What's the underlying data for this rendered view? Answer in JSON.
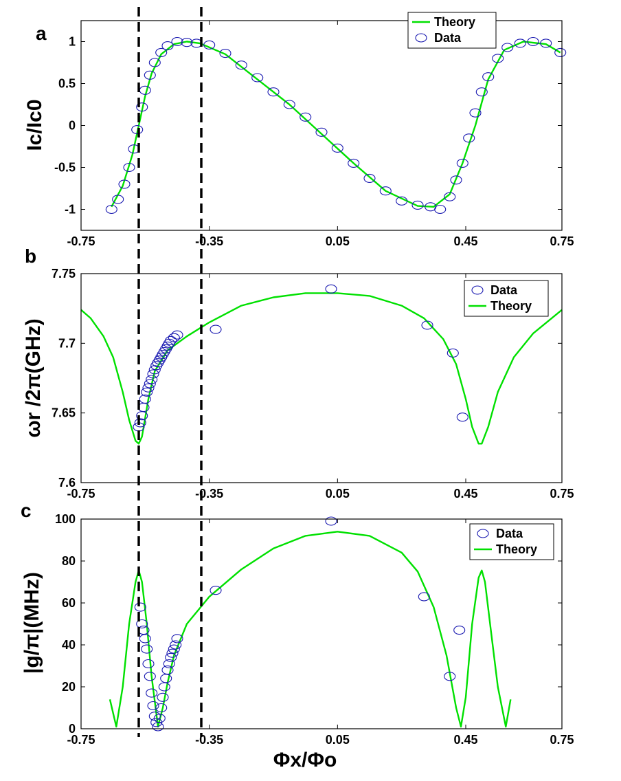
{
  "colors": {
    "theory": "#00e000",
    "data": "#1818b0",
    "axis": "#000000",
    "marker_line": "#000000"
  },
  "figure": {
    "xlabel": "Φx/Φo"
  },
  "markers": {
    "x_values": [
      -0.57,
      -0.375
    ]
  },
  "chart_data": [
    {
      "type": "line",
      "panel": "a",
      "panel_label": "a",
      "ylabel": "Ic/Ic0",
      "xlim": [
        -0.75,
        0.75
      ],
      "ylim": [
        -1.25,
        1.25
      ],
      "xticks": [
        -0.75,
        -0.35,
        0.05,
        0.45,
        0.75
      ],
      "xtick_labels": [
        "-0.75",
        "-0.35",
        "0.05",
        "0.45",
        "0.75"
      ],
      "yticks": [
        -1,
        -0.5,
        0,
        0.5,
        1
      ],
      "ytick_labels": [
        "-1",
        "-0.5",
        "0",
        "0.5",
        "1"
      ],
      "legend": {
        "position": "top-right",
        "entries": [
          {
            "label": "Theory",
            "kind": "line"
          },
          {
            "label": "Data",
            "kind": "marker"
          }
        ]
      },
      "series": [
        {
          "name": "Theory",
          "kind": "line",
          "points": [
            [
              -0.655,
              -0.97
            ],
            [
              -0.62,
              -0.72
            ],
            [
              -0.59,
              -0.35
            ],
            [
              -0.57,
              0.0
            ],
            [
              -0.55,
              0.35
            ],
            [
              -0.53,
              0.62
            ],
            [
              -0.5,
              0.85
            ],
            [
              -0.46,
              0.97
            ],
            [
              -0.42,
              1.0
            ],
            [
              -0.38,
              0.98
            ],
            [
              -0.3,
              0.85
            ],
            [
              -0.2,
              0.55
            ],
            [
              -0.1,
              0.25
            ],
            [
              0.0,
              -0.1
            ],
            [
              0.1,
              -0.45
            ],
            [
              0.2,
              -0.78
            ],
            [
              0.3,
              -0.96
            ],
            [
              0.35,
              -0.97
            ],
            [
              0.4,
              -0.82
            ],
            [
              0.44,
              -0.45
            ],
            [
              0.48,
              0.0
            ],
            [
              0.52,
              0.55
            ],
            [
              0.57,
              0.9
            ],
            [
              0.63,
              1.0
            ],
            [
              0.7,
              0.97
            ],
            [
              0.745,
              0.87
            ]
          ]
        },
        {
          "name": "Data",
          "kind": "scatter",
          "points": [
            [
              -0.655,
              -1.0
            ],
            [
              -0.635,
              -0.88
            ],
            [
              -0.615,
              -0.7
            ],
            [
              -0.6,
              -0.5
            ],
            [
              -0.585,
              -0.28
            ],
            [
              -0.575,
              -0.05
            ],
            [
              -0.56,
              0.22
            ],
            [
              -0.55,
              0.42
            ],
            [
              -0.535,
              0.6
            ],
            [
              -0.52,
              0.75
            ],
            [
              -0.5,
              0.87
            ],
            [
              -0.48,
              0.95
            ],
            [
              -0.45,
              1.0
            ],
            [
              -0.42,
              0.99
            ],
            [
              -0.39,
              0.98
            ],
            [
              -0.35,
              0.96
            ],
            [
              -0.3,
              0.86
            ],
            [
              -0.25,
              0.72
            ],
            [
              -0.2,
              0.57
            ],
            [
              -0.15,
              0.4
            ],
            [
              -0.1,
              0.25
            ],
            [
              -0.05,
              0.1
            ],
            [
              0.0,
              -0.08
            ],
            [
              0.05,
              -0.27
            ],
            [
              0.1,
              -0.45
            ],
            [
              0.15,
              -0.63
            ],
            [
              0.2,
              -0.78
            ],
            [
              0.25,
              -0.9
            ],
            [
              0.3,
              -0.95
            ],
            [
              0.34,
              -0.97
            ],
            [
              0.37,
              -1.0
            ],
            [
              0.4,
              -0.85
            ],
            [
              0.42,
              -0.65
            ],
            [
              0.44,
              -0.45
            ],
            [
              0.46,
              -0.15
            ],
            [
              0.48,
              0.15
            ],
            [
              0.5,
              0.4
            ],
            [
              0.52,
              0.58
            ],
            [
              0.55,
              0.8
            ],
            [
              0.58,
              0.93
            ],
            [
              0.62,
              0.98
            ],
            [
              0.66,
              1.0
            ],
            [
              0.7,
              0.98
            ],
            [
              0.745,
              0.87
            ]
          ]
        }
      ]
    },
    {
      "type": "line",
      "panel": "b",
      "panel_label": "b",
      "ylabel": "ωr /2π(GHz)",
      "xlim": [
        -0.75,
        0.75
      ],
      "ylim": [
        7.6,
        7.75
      ],
      "xticks": [
        -0.75,
        -0.35,
        0.05,
        0.45,
        0.75
      ],
      "xtick_labels": [
        "-0.75",
        "-0.35",
        "0.05",
        "0.45",
        "0.75"
      ],
      "yticks": [
        7.6,
        7.65,
        7.7,
        7.75
      ],
      "ytick_labels": [
        "7.6",
        "7.65",
        "7.7",
        "7.75"
      ],
      "legend": {
        "position": "top-right",
        "entries": [
          {
            "label": "Data",
            "kind": "marker"
          },
          {
            "label": "Theory",
            "kind": "line"
          }
        ]
      },
      "series": [
        {
          "name": "Theory",
          "kind": "line",
          "points": [
            [
              -0.75,
              7.724
            ],
            [
              -0.72,
              7.718
            ],
            [
              -0.68,
              7.705
            ],
            [
              -0.65,
              7.69
            ],
            [
              -0.62,
              7.665
            ],
            [
              -0.6,
              7.645
            ],
            [
              -0.58,
              7.63
            ],
            [
              -0.57,
              7.628
            ],
            [
              -0.56,
              7.633
            ],
            [
              -0.54,
              7.66
            ],
            [
              -0.52,
              7.68
            ],
            [
              -0.48,
              7.695
            ],
            [
              -0.42,
              7.705
            ],
            [
              -0.35,
              7.715
            ],
            [
              -0.25,
              7.727
            ],
            [
              -0.15,
              7.733
            ],
            [
              -0.05,
              7.736
            ],
            [
              0.05,
              7.736
            ],
            [
              0.15,
              7.734
            ],
            [
              0.25,
              7.727
            ],
            [
              0.32,
              7.718
            ],
            [
              0.38,
              7.703
            ],
            [
              0.42,
              7.685
            ],
            [
              0.45,
              7.66
            ],
            [
              0.47,
              7.64
            ],
            [
              0.49,
              7.628
            ],
            [
              0.5,
              7.628
            ],
            [
              0.52,
              7.64
            ],
            [
              0.55,
              7.665
            ],
            [
              0.6,
              7.69
            ],
            [
              0.66,
              7.707
            ],
            [
              0.75,
              7.724
            ]
          ]
        },
        {
          "name": "Data",
          "kind": "scatter",
          "points": [
            [
              -0.57,
              7.64
            ],
            [
              -0.565,
              7.643
            ],
            [
              -0.56,
              7.648
            ],
            [
              -0.555,
              7.654
            ],
            [
              -0.55,
              7.66
            ],
            [
              -0.545,
              7.665
            ],
            [
              -0.54,
              7.668
            ],
            [
              -0.535,
              7.671
            ],
            [
              -0.53,
              7.674
            ],
            [
              -0.525,
              7.678
            ],
            [
              -0.52,
              7.681
            ],
            [
              -0.515,
              7.684
            ],
            [
              -0.51,
              7.686
            ],
            [
              -0.505,
              7.688
            ],
            [
              -0.5,
              7.69
            ],
            [
              -0.495,
              7.692
            ],
            [
              -0.49,
              7.694
            ],
            [
              -0.485,
              7.696
            ],
            [
              -0.48,
              7.698
            ],
            [
              -0.475,
              7.7
            ],
            [
              -0.47,
              7.702
            ],
            [
              -0.46,
              7.704
            ],
            [
              -0.45,
              7.706
            ],
            [
              -0.33,
              7.71
            ],
            [
              0.03,
              7.739
            ],
            [
              0.33,
              7.713
            ],
            [
              0.41,
              7.693
            ],
            [
              0.44,
              7.647
            ]
          ]
        }
      ]
    },
    {
      "type": "line",
      "panel": "c",
      "panel_label": "c",
      "ylabel": "|g/π|(MHz)",
      "xlabel": "Φx/Φo",
      "xlim": [
        -0.75,
        0.75
      ],
      "ylim": [
        0,
        100
      ],
      "xticks": [
        -0.75,
        -0.35,
        0.05,
        0.45,
        0.75
      ],
      "xtick_labels": [
        "-0.75",
        "-0.35",
        "0.05",
        "0.45",
        "0.75"
      ],
      "yticks": [
        0,
        20,
        40,
        60,
        80,
        100
      ],
      "ytick_labels": [
        "0",
        "20",
        "40",
        "60",
        "80",
        "100"
      ],
      "legend": {
        "position": "top-right",
        "entries": [
          {
            "label": "Data",
            "kind": "marker"
          },
          {
            "label": "Theory",
            "kind": "line"
          }
        ]
      },
      "series": [
        {
          "name": "Theory",
          "kind": "line",
          "points": [
            [
              -0.66,
              14
            ],
            [
              -0.64,
              1
            ],
            [
              -0.62,
              20
            ],
            [
              -0.6,
              50
            ],
            [
              -0.58,
              70
            ],
            [
              -0.57,
              75.5
            ],
            [
              -0.56,
              70
            ],
            [
              -0.545,
              50
            ],
            [
              -0.53,
              25
            ],
            [
              -0.51,
              1
            ],
            [
              -0.495,
              10
            ],
            [
              -0.48,
              22
            ],
            [
              -0.46,
              35
            ],
            [
              -0.42,
              50
            ],
            [
              -0.35,
              63
            ],
            [
              -0.25,
              76
            ],
            [
              -0.15,
              86
            ],
            [
              -0.05,
              92
            ],
            [
              0.05,
              94
            ],
            [
              0.15,
              92
            ],
            [
              0.25,
              84
            ],
            [
              0.3,
              75
            ],
            [
              0.35,
              58
            ],
            [
              0.39,
              35
            ],
            [
              0.42,
              10
            ],
            [
              0.435,
              1
            ],
            [
              0.45,
              15
            ],
            [
              0.47,
              50
            ],
            [
              0.49,
              72
            ],
            [
              0.5,
              75.5
            ],
            [
              0.51,
              70
            ],
            [
              0.53,
              45
            ],
            [
              0.55,
              20
            ],
            [
              0.575,
              1
            ],
            [
              0.59,
              14
            ]
          ]
        },
        {
          "name": "Data",
          "kind": "scatter",
          "points": [
            [
              -0.565,
              58
            ],
            [
              -0.56,
              50
            ],
            [
              -0.555,
              47
            ],
            [
              -0.55,
              43
            ],
            [
              -0.545,
              38
            ],
            [
              -0.54,
              31
            ],
            [
              -0.535,
              25
            ],
            [
              -0.53,
              17
            ],
            [
              -0.525,
              11
            ],
            [
              -0.52,
              6
            ],
            [
              -0.515,
              3
            ],
            [
              -0.51,
              1
            ],
            [
              -0.505,
              5
            ],
            [
              -0.5,
              10
            ],
            [
              -0.495,
              15
            ],
            [
              -0.49,
              20
            ],
            [
              -0.485,
              24
            ],
            [
              -0.48,
              28
            ],
            [
              -0.475,
              31
            ],
            [
              -0.47,
              34
            ],
            [
              -0.465,
              36
            ],
            [
              -0.46,
              38
            ],
            [
              -0.455,
              40
            ],
            [
              -0.45,
              43
            ],
            [
              -0.33,
              66
            ],
            [
              0.03,
              99
            ],
            [
              0.32,
              63
            ],
            [
              0.4,
              25
            ],
            [
              0.43,
              47
            ]
          ]
        }
      ]
    }
  ]
}
